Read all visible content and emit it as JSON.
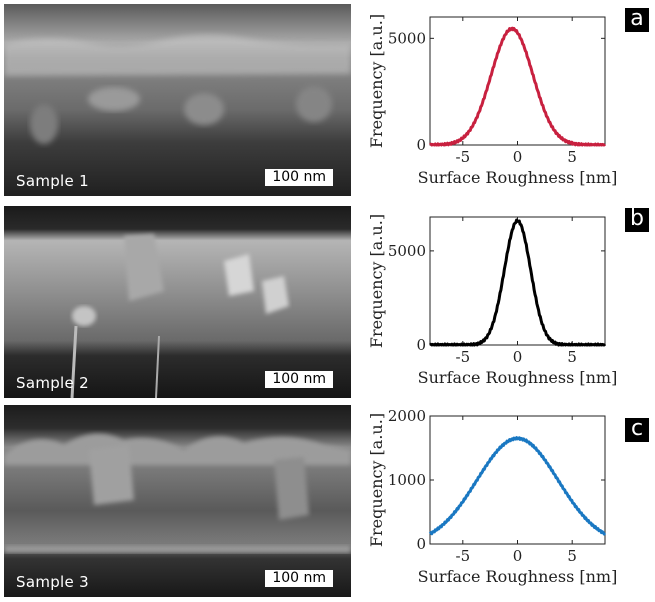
{
  "panels": [
    {
      "letter": "a",
      "sample_label": "Sample 1",
      "scale_bar": "100 nm"
    },
    {
      "letter": "b",
      "sample_label": "Sample 2",
      "scale_bar": "100 nm"
    },
    {
      "letter": "c",
      "sample_label": "Sample 3",
      "scale_bar": "100 nm"
    }
  ],
  "chart_data": [
    {
      "type": "line",
      "xlabel": "Surface Roughness [nm]",
      "ylabel": "Frequency  [a.u.]",
      "xlim": [
        -8,
        8
      ],
      "ylim": [
        0,
        6000
      ],
      "xticks": [
        -5,
        0,
        5
      ],
      "yticks": [
        0,
        5000
      ],
      "grid": false,
      "series": [
        {
          "color": "#c8203f",
          "distribution": "gaussian",
          "peak_x": -0.5,
          "peak_y": 5450,
          "sigma": 1.9,
          "x": [
            -8,
            -6,
            -4,
            -3,
            -2,
            -1,
            -0.5,
            0,
            1,
            2,
            3,
            4,
            6,
            8
          ],
          "y": [
            0,
            60,
            1010,
            2330,
            3940,
            5280,
            5450,
            5280,
            3940,
            2330,
            1010,
            330,
            15,
            0
          ]
        }
      ]
    },
    {
      "type": "line",
      "xlabel": "Surface Roughness [nm]",
      "ylabel": "Frequency  [a.u.]",
      "xlim": [
        -8,
        8
      ],
      "ylim": [
        0,
        6800
      ],
      "xticks": [
        -5,
        0,
        5
      ],
      "yticks": [
        0,
        5000
      ],
      "grid": false,
      "series": [
        {
          "color": "#000000",
          "distribution": "gaussian",
          "peak_x": 0,
          "peak_y": 6600,
          "sigma": 1.2,
          "x": [
            -8,
            -4,
            -3,
            -2,
            -1,
            0,
            1,
            2,
            3,
            4,
            8
          ],
          "y": [
            0,
            30,
            290,
            1650,
            4650,
            6600,
            4650,
            1650,
            290,
            30,
            0
          ]
        }
      ]
    },
    {
      "type": "line",
      "xlabel": "Surface Roughness [nm]",
      "ylabel": "Frequency  [a.u.]",
      "xlim": [
        -8,
        8
      ],
      "ylim": [
        0,
        2000
      ],
      "xticks": [
        -5,
        0,
        5
      ],
      "yticks": [
        0,
        1000,
        2000
      ],
      "grid": false,
      "series": [
        {
          "color": "#1a78c2",
          "distribution": "gaussian",
          "peak_x": 0,
          "peak_y": 1650,
          "sigma": 3.7,
          "x": [
            -8,
            -6,
            -4,
            -2,
            0,
            2,
            4,
            6,
            8
          ],
          "y": [
            160,
            440,
            920,
            1420,
            1650,
            1420,
            920,
            440,
            160
          ]
        }
      ]
    }
  ]
}
